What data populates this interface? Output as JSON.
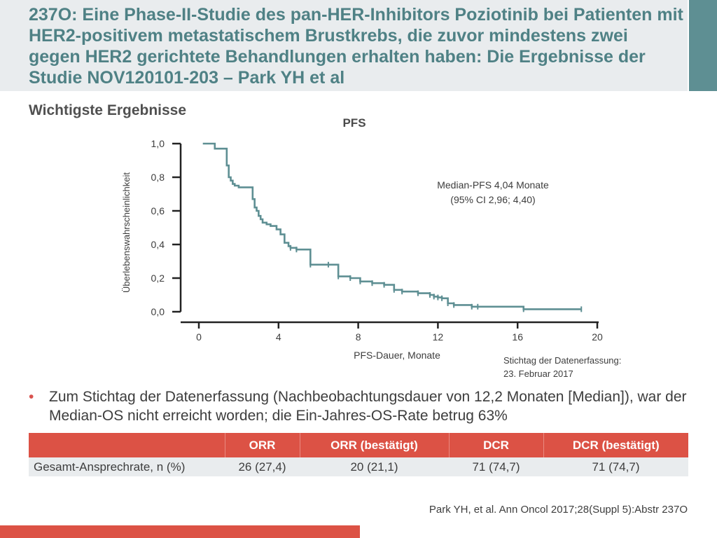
{
  "slide": {
    "title": "237O: Eine Phase-II-Studie des pan-HER-Inhibitors Poziotinib bei Patienten mit HER2-positivem metastatischem Brustkrebs, die zuvor mindestens zwei gegen HER2 gerichtete Behandlungen erhalten haben: Die Ergebnisse der Studie NOV120101-203 – Park YH et al",
    "subtitle": "Wichtigste Ergebnisse",
    "bullet": "Zum Stichtag der Datenerfassung (Nachbeobachtungsdauer von 12,2 Monaten [Median]), war der Median-OS nicht erreicht worden; die Ein-Jahres-OS-Rate betrug 63%",
    "citation": "Park YH, et al. Ann Oncol 2017;28(Suppl 5):Abstr 237O"
  },
  "colors": {
    "header_text": "#4f8185",
    "curve": "#5e8f93",
    "accent_red": "#dc5245",
    "header_bg": "#e9ecee"
  },
  "table": {
    "headers": [
      "",
      "ORR",
      "ORR (bestätigt)",
      "DCR",
      "DCR (bestätigt)"
    ],
    "rows": [
      [
        "Gesamt-Ansprechrate, n (%)",
        "26 (27,4)",
        "20 (21,1)",
        "71 (74,7)",
        "71 (74,7)"
      ]
    ]
  },
  "chart_data": {
    "type": "line",
    "title": "PFS",
    "xlabel": "PFS-Dauer, Monate",
    "ylabel": "Überlebenswahrscheinlichkeit",
    "xlim": [
      0,
      20
    ],
    "ylim": [
      0,
      1
    ],
    "xticks": [
      0,
      4,
      8,
      12,
      16,
      20
    ],
    "xtick_labels": [
      "0",
      "4",
      "8",
      "12",
      "16",
      "20"
    ],
    "yticks": [
      0,
      0.2,
      0.4,
      0.6,
      0.8,
      1.0
    ],
    "ytick_labels": [
      "0,0",
      "0,2",
      "0,4",
      "0,6",
      "0,8",
      "1,0"
    ],
    "grid": false,
    "series": [
      {
        "step": "post",
        "x": [
          0.2,
          0.8,
          1.4,
          1.5,
          1.6,
          1.7,
          1.8,
          2.0,
          2.7,
          2.8,
          2.9,
          3.0,
          3.1,
          3.2,
          3.4,
          3.6,
          3.9,
          4.1,
          4.3,
          4.5,
          4.6,
          4.9,
          5.6,
          6.5,
          7.0,
          7.6,
          8.1,
          8.7,
          9.3,
          9.8,
          10.2,
          11.0,
          11.6,
          11.8,
          12.0,
          12.2,
          12.5,
          12.8,
          13.7,
          14.0,
          16.3,
          19.2
        ],
        "y": [
          1.0,
          0.97,
          0.87,
          0.8,
          0.78,
          0.76,
          0.75,
          0.74,
          0.67,
          0.62,
          0.6,
          0.57,
          0.55,
          0.53,
          0.52,
          0.51,
          0.49,
          0.46,
          0.41,
          0.39,
          0.38,
          0.37,
          0.28,
          0.28,
          0.21,
          0.2,
          0.18,
          0.17,
          0.16,
          0.13,
          0.12,
          0.11,
          0.1,
          0.09,
          0.085,
          0.08,
          0.05,
          0.04,
          0.03,
          0.03,
          0.015,
          0.015
        ]
      }
    ],
    "annotations": [
      "Median-PFS 4,04 Monate",
      "(95% CI 2,96; 4,40)",
      "Stichtag der Datenerfassung:",
      "23. Februar 2017"
    ]
  }
}
